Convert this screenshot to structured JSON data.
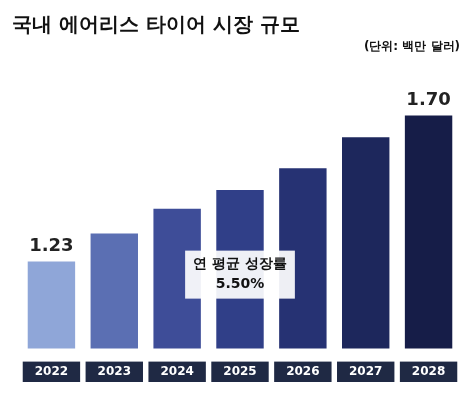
{
  "chart_data": {
    "type": "bar",
    "title": "국내 에어리스 타이어 시장 규모",
    "subtitle": "(단위: 백만 달러)",
    "categories": [
      "2022",
      "2023",
      "2024",
      "2025",
      "2026",
      "2027",
      "2028"
    ],
    "values": [
      1.23,
      1.32,
      1.4,
      1.46,
      1.53,
      1.63,
      1.7
    ],
    "value_labels": [
      "1.23",
      null,
      null,
      null,
      null,
      null,
      "1.70"
    ],
    "colors": [
      "#8fa6d8",
      "#5b6fb3",
      "#3e4d98",
      "#303f88",
      "#263273",
      "#1d275c",
      "#161d48"
    ],
    "annotations": [
      "연 평균 성장률",
      "5.50%"
    ],
    "ylim": [
      0.95,
      1.8
    ],
    "grid": false,
    "data_labels": true,
    "tick_labels": "x"
  }
}
